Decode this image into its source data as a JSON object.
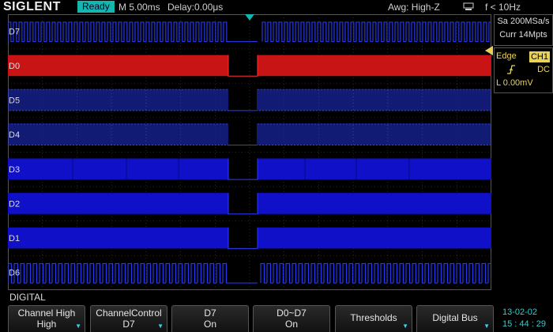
{
  "header": {
    "brand": "SIGLENT",
    "run_state": "Ready",
    "timebase": "M 5.00ms",
    "delay": "Delay:0.00μs",
    "awg": "Awg: High-Z",
    "usb_icon": "usb-icon",
    "frequency": "f < 10Hz"
  },
  "acquisition": {
    "sample_rate": "Sa 200MSa/s",
    "memory": "Curr 14Mpts"
  },
  "trigger": {
    "type": "Edge",
    "source": "CH1",
    "slope_icon": "rising-edge-icon",
    "coupling": "DC",
    "level": "L  0.00mV"
  },
  "channels": [
    {
      "id": "D7",
      "style": "pulses-fast"
    },
    {
      "id": "D0",
      "style": "solid-selected",
      "color": "#c81414"
    },
    {
      "id": "D5",
      "style": "dense"
    },
    {
      "id": "D4",
      "style": "dense"
    },
    {
      "id": "D3",
      "style": "solid-segmented"
    },
    {
      "id": "D2",
      "style": "solid"
    },
    {
      "id": "D1",
      "style": "solid"
    },
    {
      "id": "D6",
      "style": "pulses"
    }
  ],
  "colors": {
    "trace": "#1010c8",
    "trace_line": "#2a3cff",
    "selected": "#c81414",
    "accent": "#13b7b0",
    "trigger": "#e8d35a"
  },
  "menu": {
    "title": "DIGITAL",
    "softkeys": [
      {
        "line1": "Channel High",
        "line2": "High",
        "arrow": true
      },
      {
        "line1": "ChannelControl",
        "line2": "D7",
        "arrow": true
      },
      {
        "line1": "D7",
        "line2": "On",
        "arrow": false
      },
      {
        "line1": "D0~D7",
        "line2": "On",
        "arrow": false
      },
      {
        "line1": "Thresholds",
        "line2": "",
        "arrow": true
      },
      {
        "line1": "Digital Bus",
        "line2": "",
        "arrow": true
      }
    ]
  },
  "clock": {
    "date": "13-02-02",
    "time": "15 : 44 : 29"
  }
}
